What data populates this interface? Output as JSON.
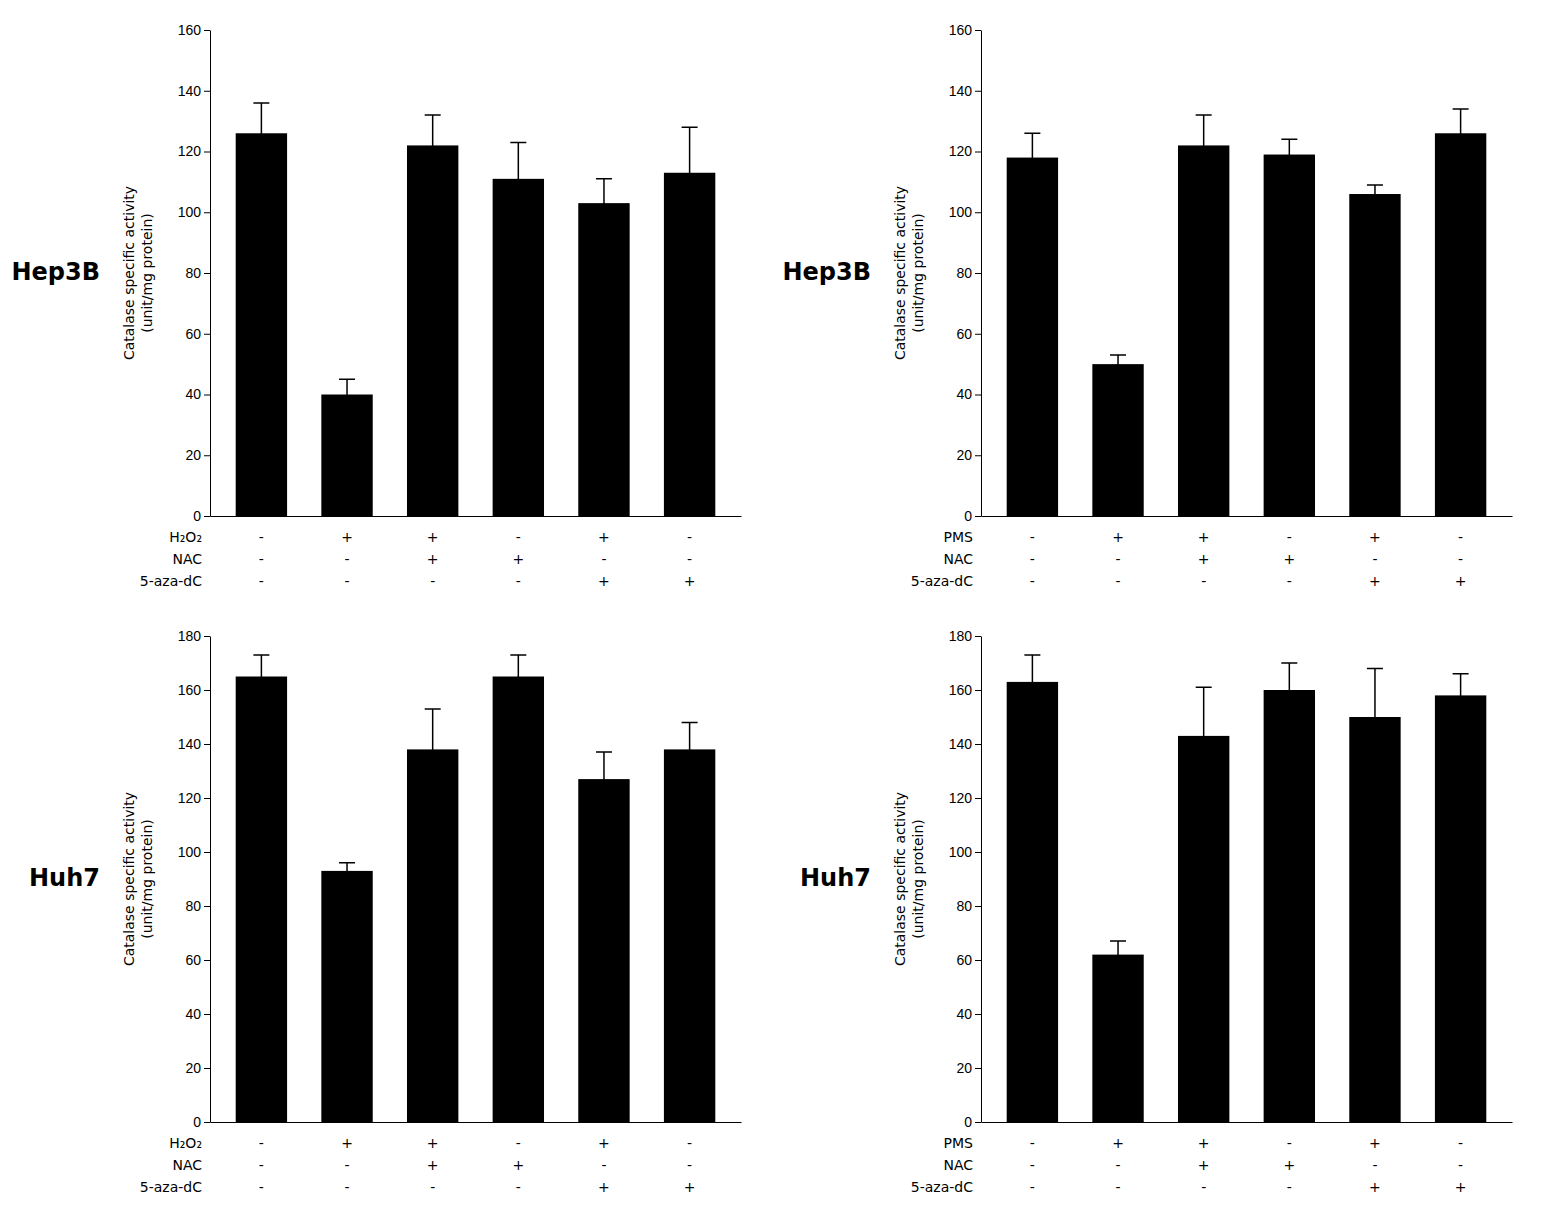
{
  "chart_data": [
    {
      "type": "bar",
      "title": "Hep3B",
      "y_label": "Catalase specific activity\n(unit/mg protein)",
      "categories": [
        null,
        null,
        null,
        null,
        null,
        null
      ],
      "values": [
        126,
        40,
        122,
        111,
        103,
        113
      ],
      "errors": [
        10,
        5,
        10,
        12,
        8,
        15
      ],
      "color": "#000000",
      "ylim": [
        0,
        160
      ],
      "yticks": [
        0,
        20,
        40,
        60,
        80,
        100,
        120,
        140,
        160
      ],
      "grid": false,
      "tick_labels": "y",
      "treatments": [
        {
          "label": "H₂O₂",
          "signs": [
            "-",
            "+",
            "+",
            "-",
            "+",
            "-"
          ]
        },
        {
          "label": "NAC",
          "signs": [
            "-",
            "-",
            "+",
            "+",
            "-",
            "-"
          ]
        },
        {
          "label": "5-aza-dC",
          "signs": [
            "-",
            "-",
            "-",
            "-",
            "+",
            "+"
          ]
        }
      ]
    },
    {
      "type": "bar",
      "title": "Hep3B",
      "y_label": "Catalase specific activity\n(unit/mg protein)",
      "categories": [
        null,
        null,
        null,
        null,
        null,
        null
      ],
      "values": [
        118,
        50,
        122,
        119,
        106,
        126
      ],
      "errors": [
        8,
        3,
        10,
        5,
        3,
        8
      ],
      "color": "#000000",
      "ylim": [
        0,
        160
      ],
      "yticks": [
        0,
        20,
        40,
        60,
        80,
        100,
        120,
        140,
        160
      ],
      "grid": false,
      "tick_labels": "y",
      "treatments": [
        {
          "label": "PMS",
          "signs": [
            "-",
            "+",
            "+",
            "-",
            "+",
            "-"
          ]
        },
        {
          "label": "NAC",
          "signs": [
            "-",
            "-",
            "+",
            "+",
            "-",
            "-"
          ]
        },
        {
          "label": "5-aza-dC",
          "signs": [
            "-",
            "-",
            "-",
            "-",
            "+",
            "+"
          ]
        }
      ]
    },
    {
      "type": "bar",
      "title": "Huh7",
      "y_label": "Catalase specific activity\n(unit/mg protein)",
      "categories": [
        null,
        null,
        null,
        null,
        null,
        null
      ],
      "values": [
        165,
        93,
        138,
        165,
        127,
        138
      ],
      "errors": [
        8,
        3,
        15,
        8,
        10,
        10
      ],
      "color": "#000000",
      "ylim": [
        0,
        180
      ],
      "yticks": [
        0,
        20,
        40,
        60,
        80,
        100,
        120,
        140,
        160,
        180
      ],
      "grid": false,
      "tick_labels": "y",
      "treatments": [
        {
          "label": "H₂O₂",
          "signs": [
            "-",
            "+",
            "+",
            "-",
            "+",
            "-"
          ]
        },
        {
          "label": "NAC",
          "signs": [
            "-",
            "-",
            "+",
            "+",
            "-",
            "-"
          ]
        },
        {
          "label": "5-aza-dC",
          "signs": [
            "-",
            "-",
            "-",
            "-",
            "+",
            "+"
          ]
        }
      ]
    },
    {
      "type": "bar",
      "title": "Huh7",
      "y_label": "Catalase specific activity\n(unit/mg protein)",
      "categories": [
        null,
        null,
        null,
        null,
        null,
        null
      ],
      "values": [
        163,
        62,
        143,
        160,
        150,
        158
      ],
      "errors": [
        10,
        5,
        18,
        10,
        18,
        8
      ],
      "color": "#000000",
      "ylim": [
        0,
        180
      ],
      "yticks": [
        0,
        20,
        40,
        60,
        80,
        100,
        120,
        140,
        160,
        180
      ],
      "grid": false,
      "tick_labels": "y",
      "treatments": [
        {
          "label": "PMS",
          "signs": [
            "-",
            "+",
            "+",
            "-",
            "+",
            "-"
          ]
        },
        {
          "label": "NAC",
          "signs": [
            "-",
            "-",
            "+",
            "+",
            "-",
            "-"
          ]
        },
        {
          "label": "5-aza-dC",
          "signs": [
            "-",
            "-",
            "-",
            "-",
            "+",
            "+"
          ]
        }
      ]
    }
  ]
}
